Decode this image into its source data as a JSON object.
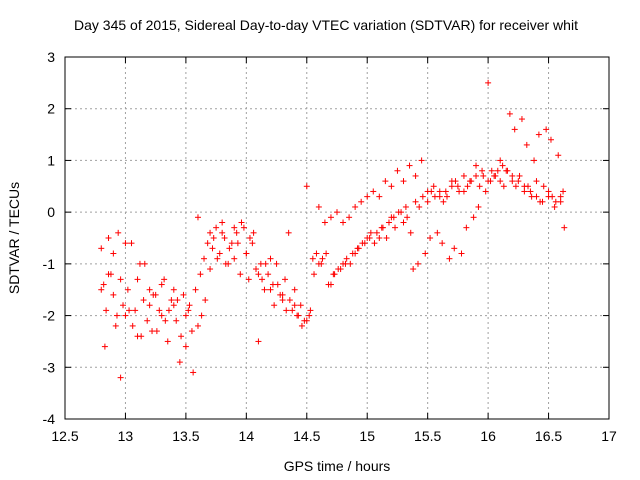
{
  "chart_data": {
    "type": "scatter",
    "title": "Day 345 of 2015, Sidereal Day-to-day VTEC variation (SDTVAR) for receiver whit",
    "xlabel": "GPS time / hours",
    "ylabel": "SDTVAR / TECUs",
    "xlim": [
      12.5,
      17
    ],
    "ylim": [
      -4,
      3
    ],
    "xticks": [
      "12.5",
      "13",
      "13.5",
      "14",
      "14.5",
      "15",
      "15.5",
      "16",
      "16.5",
      "17"
    ],
    "yticks": [
      "-4",
      "-3",
      "-2",
      "-1",
      "0",
      "1",
      "2",
      "3"
    ],
    "grid": true,
    "marker": "+",
    "series_color": "#ff0000",
    "series": [
      {
        "name": "SDTVAR",
        "x": [
          12.8,
          12.82,
          12.84,
          12.86,
          12.88,
          12.9,
          12.92,
          12.94,
          12.96,
          12.98,
          13.0,
          13.02,
          13.05,
          13.08,
          13.1,
          13.12,
          13.15,
          13.18,
          13.2,
          13.22,
          13.25,
          13.28,
          13.3,
          13.32,
          13.35,
          13.38,
          13.4,
          13.42,
          13.45,
          13.48,
          13.5,
          13.52,
          13.55,
          13.58,
          13.6,
          13.62,
          13.65,
          13.68,
          13.7,
          13.72,
          13.75,
          13.78,
          13.8,
          13.82,
          13.85,
          13.88,
          13.9,
          13.92,
          13.95,
          13.98,
          14.0,
          14.02,
          14.05,
          14.08,
          14.1,
          14.12,
          14.15,
          14.18,
          14.2,
          14.22,
          14.25,
          14.28,
          14.3,
          14.32,
          14.35,
          14.38,
          14.4,
          14.42,
          14.45,
          14.48,
          14.5,
          14.52,
          14.55,
          14.58,
          14.6,
          14.62,
          14.65,
          14.68,
          14.7,
          14.72,
          14.75,
          14.78,
          14.8,
          14.82,
          14.85,
          14.88,
          14.9,
          14.92,
          14.95,
          14.98,
          15.0,
          15.02,
          15.05,
          15.08,
          15.1,
          15.12,
          15.15,
          15.18,
          15.2,
          15.22,
          15.25,
          15.28,
          15.3,
          15.32,
          15.35,
          15.38,
          15.4,
          15.42,
          15.45,
          15.48,
          15.5,
          15.52,
          15.55,
          15.58,
          15.6,
          15.62,
          15.65,
          15.68,
          15.7,
          15.72,
          15.75,
          15.78,
          15.8,
          15.82,
          15.85,
          15.88,
          15.9,
          15.92,
          15.95,
          15.98,
          16.0,
          16.02,
          16.05,
          16.08,
          16.1,
          16.12,
          16.15,
          16.18,
          16.2,
          16.22,
          16.25,
          16.28,
          16.3,
          16.32,
          16.35,
          16.38,
          16.4,
          16.42,
          16.45,
          16.48,
          16.5,
          16.52,
          16.55,
          16.58,
          16.6,
          16.62,
          12.8,
          12.83,
          12.86,
          12.9,
          12.93,
          12.96,
          13.0,
          13.03,
          13.06,
          13.1,
          13.13,
          13.16,
          13.2,
          13.23,
          13.26,
          13.3,
          13.33,
          13.36,
          13.4,
          13.43,
          13.46,
          13.5,
          13.53,
          13.56,
          13.6,
          13.63,
          13.66,
          13.7,
          13.73,
          13.76,
          13.8,
          13.83,
          13.86,
          13.9,
          13.93,
          13.96,
          14.0,
          14.03,
          14.06,
          14.1,
          14.13,
          14.16,
          14.2,
          14.23,
          14.26,
          14.3,
          14.33,
          14.36,
          14.4,
          14.43,
          14.46,
          14.5,
          14.53,
          14.56,
          14.6,
          14.63,
          14.66,
          14.7,
          14.73,
          14.76,
          14.8,
          14.83,
          14.86,
          14.9,
          14.93,
          14.96,
          15.0,
          15.03,
          15.06,
          15.1,
          15.13,
          15.16,
          15.2,
          15.23,
          15.26,
          15.3,
          15.33,
          15.36,
          15.4,
          15.43,
          15.46,
          15.5,
          15.53,
          15.56,
          15.6,
          15.63,
          15.66,
          15.7,
          15.73,
          15.76,
          15.8,
          15.83,
          15.86,
          15.9,
          15.93,
          15.96,
          16.0,
          16.03,
          16.06,
          16.1,
          16.13,
          16.16,
          16.2,
          16.23,
          16.26,
          16.3,
          16.33,
          16.36,
          16.4,
          16.43,
          16.46,
          16.5,
          16.53,
          16.56,
          16.6,
          16.63
        ],
        "y": [
          -0.7,
          -1.4,
          -1.9,
          -0.5,
          -1.2,
          -1.6,
          -2.2,
          -0.4,
          -1.3,
          -1.8,
          -2.0,
          -1.5,
          -0.6,
          -1.9,
          -2.4,
          -1.0,
          -1.7,
          -2.1,
          -1.5,
          -2.3,
          -1.6,
          -1.9,
          -2.0,
          -1.3,
          -2.5,
          -1.7,
          -1.8,
          -2.1,
          -2.9,
          -1.6,
          -2.6,
          -1.9,
          -2.3,
          -1.5,
          -0.1,
          -1.2,
          -0.9,
          -0.6,
          -0.4,
          -0.7,
          -0.3,
          -0.8,
          -0.2,
          -0.5,
          -1.0,
          -0.6,
          -0.9,
          -0.4,
          -1.2,
          -0.3,
          -0.8,
          -1.3,
          -0.6,
          -1.1,
          -2.5,
          -1.0,
          -1.5,
          -1.2,
          -0.9,
          -1.4,
          -1.0,
          -1.6,
          -1.7,
          -1.3,
          -0.4,
          -1.9,
          -1.5,
          -2.0,
          -1.8,
          -2.1,
          0.5,
          -2.0,
          -0.9,
          -0.8,
          0.1,
          -1.0,
          -0.2,
          -1.4,
          -0.1,
          -1.2,
          0.0,
          -1.1,
          -0.2,
          -1.0,
          -0.1,
          -0.8,
          0.1,
          -0.7,
          0.2,
          -0.6,
          0.3,
          -0.5,
          0.4,
          -0.4,
          0.3,
          -0.3,
          0.6,
          -0.2,
          0.5,
          -0.1,
          0.8,
          0.0,
          0.6,
          0.1,
          0.9,
          -1.1,
          0.7,
          -1.0,
          1.0,
          -0.8,
          0.4,
          -0.5,
          0.5,
          -0.4,
          0.3,
          -0.6,
          0.4,
          -0.9,
          0.6,
          -0.7,
          0.5,
          -0.8,
          0.4,
          -0.3,
          0.6,
          -0.1,
          0.9,
          0.1,
          0.8,
          0.4,
          2.5,
          0.6,
          0.7,
          0.8,
          1.0,
          0.9,
          0.8,
          1.9,
          0.7,
          1.6,
          0.6,
          1.8,
          0.5,
          1.3,
          0.4,
          1.0,
          0.3,
          1.5,
          0.2,
          1.6,
          0.3,
          1.4,
          0.1,
          1.1,
          0.2,
          0.4,
          -1.5,
          -2.6,
          -1.2,
          -0.8,
          -2.0,
          -3.2,
          -0.6,
          -1.9,
          -2.2,
          -1.3,
          -2.4,
          -1.0,
          -1.8,
          -1.6,
          -2.3,
          -1.4,
          -2.1,
          -1.9,
          -1.5,
          -1.7,
          -2.4,
          -2.0,
          -1.8,
          -3.1,
          -2.2,
          -2.0,
          -1.7,
          -1.1,
          -0.5,
          -0.9,
          -0.4,
          -1.0,
          -0.7,
          -0.3,
          -0.6,
          -0.2,
          -0.8,
          -0.5,
          -0.4,
          -1.2,
          -1.3,
          -1.0,
          -1.5,
          -1.8,
          -1.4,
          -1.6,
          -1.9,
          -1.7,
          -1.8,
          -2.0,
          -2.2,
          -2.1,
          -1.9,
          -1.2,
          -1.0,
          -0.9,
          -0.8,
          -1.4,
          -1.2,
          -1.1,
          -1.0,
          -0.9,
          -1.0,
          -0.8,
          -0.7,
          -0.6,
          -0.5,
          -0.4,
          -0.6,
          -0.5,
          -0.3,
          -0.5,
          -0.1,
          -0.3,
          0.0,
          -0.2,
          -0.1,
          -0.4,
          0.2,
          0.1,
          0.3,
          0.2,
          0.4,
          0.3,
          0.4,
          0.2,
          0.3,
          0.5,
          0.6,
          0.4,
          0.7,
          0.5,
          0.6,
          0.7,
          0.5,
          0.7,
          0.6,
          0.8,
          0.7,
          0.6,
          0.5,
          0.8,
          0.6,
          0.5,
          0.7,
          0.4,
          0.5,
          0.3,
          0.6,
          0.2,
          0.5,
          0.4,
          0.3,
          0.2,
          0.3,
          -0.3
        ]
      }
    ]
  }
}
